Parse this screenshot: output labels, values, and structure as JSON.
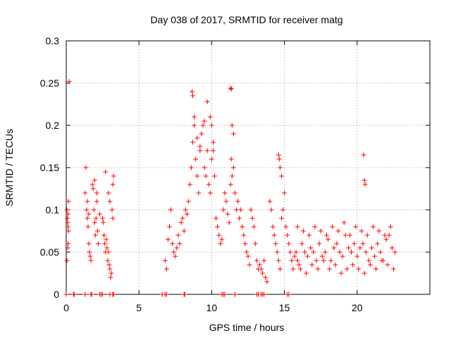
{
  "chart_data": {
    "type": "scatter",
    "title": "Day 038 of 2017, SRMTID for receiver matg",
    "xlabel": "GPS time / hours",
    "ylabel": "SRMTID / TECUs",
    "xlim": [
      0,
      25
    ],
    "ylim": [
      0,
      0.3
    ],
    "xticks": [
      0,
      5,
      10,
      15,
      20
    ],
    "xtick_labels": [
      "0",
      "5",
      "10",
      "15",
      "20"
    ],
    "yticks": [
      0,
      0.05,
      0.1,
      0.15,
      0.2,
      0.25,
      0.3
    ],
    "ytick_labels": [
      "0",
      "0.05",
      "0.1",
      "0.15",
      "0.2",
      "0.25",
      "0.3"
    ],
    "grid": true,
    "marker": "+",
    "color": "#ff0000",
    "series": [
      {
        "name": "SRMTID",
        "x": [
          0.05,
          0.08,
          0.1,
          0.12,
          0.15,
          0.05,
          0.1,
          0.13,
          0.08,
          0.12,
          0.15,
          0.2,
          0.5,
          1.3,
          1.35,
          1.4,
          1.45,
          1.5,
          1.55,
          1.6,
          1.65,
          1.7,
          1.45,
          1.55,
          1.8,
          1.85,
          1.9,
          1.95,
          2.0,
          2.05,
          2.1,
          2.15,
          2.2,
          1.95,
          2.1,
          2.3,
          2.5,
          2.55,
          2.6,
          2.65,
          2.7,
          2.75,
          2.8,
          2.85,
          2.9,
          2.95,
          3.0,
          3.05,
          3.1,
          3.15,
          3.2,
          3.25,
          2.7,
          2.9,
          3.0,
          3.2,
          6.8,
          6.9,
          7.0,
          7.1,
          7.2,
          7.3,
          7.4,
          7.5,
          7.6,
          7.7,
          7.8,
          7.9,
          8.0,
          8.1,
          8.2,
          8.3,
          8.4,
          8.5,
          8.6,
          8.7,
          8.8,
          8.9,
          9.0,
          9.1,
          9.2,
          9.3,
          9.4,
          9.5,
          9.6,
          9.7,
          9.8,
          9.9,
          10.0,
          10.1,
          10.2,
          8.65,
          8.7,
          8.8,
          9.0,
          9.2,
          9.5,
          9.7,
          9.9,
          10.0,
          10.1,
          10.3,
          10.4,
          10.5,
          10.6,
          10.7,
          10.8,
          10.9,
          11.0,
          11.1,
          11.2,
          11.3,
          11.35,
          11.4,
          11.5,
          11.6,
          11.7,
          11.8,
          11.3,
          11.35,
          11.4,
          11.5,
          11.9,
          12.0,
          12.1,
          12.2,
          12.3,
          12.4,
          12.5,
          12.6,
          12.7,
          12.8,
          12.9,
          13.0,
          13.1,
          13.2,
          13.3,
          13.4,
          13.5,
          13.6,
          13.7,
          13.8,
          14.0,
          14.1,
          14.2,
          14.3,
          14.4,
          14.5,
          14.6,
          14.7,
          14.8,
          14.9,
          15.0,
          15.1,
          14.6,
          14.65,
          14.7,
          14.8,
          15.2,
          15.3,
          15.4,
          15.5,
          15.6,
          15.7,
          15.8,
          15.9,
          16.0,
          16.2,
          16.4,
          16.6,
          16.8,
          17.0,
          17.2,
          17.4,
          17.6,
          17.8,
          18.0,
          18.2,
          18.4,
          18.6,
          18.8,
          19.0,
          19.2,
          19.4,
          19.6,
          19.8,
          20.0,
          20.2,
          20.4,
          20.6,
          20.8,
          21.0,
          21.2,
          21.4,
          21.6,
          21.8,
          22.0,
          22.2,
          22.4,
          22.6,
          16.1,
          16.5,
          16.9,
          17.3,
          17.7,
          18.1,
          18.5,
          18.9,
          19.3,
          19.7,
          20.1,
          20.5,
          20.9,
          21.3,
          21.7,
          22.1,
          22.5,
          15.9,
          16.3,
          16.7,
          17.1,
          17.5,
          17.9,
          18.3,
          18.7,
          19.1,
          19.5,
          19.9,
          20.3,
          20.7,
          21.1,
          21.5,
          21.9,
          22.3,
          20.45,
          20.5,
          20.55,
          0.0,
          0.55,
          1.3,
          1.7,
          1.75,
          2.3,
          2.4,
          2.5,
          3.0,
          3.2,
          3.25,
          6.6,
          6.8,
          6.9,
          8.1,
          8.15,
          10.7,
          10.8,
          10.9,
          11.6,
          13.1,
          13.2,
          13.4,
          13.5,
          13.6,
          15.2,
          15.3
        ],
        "y": [
          0.1,
          0.09,
          0.085,
          0.08,
          0.11,
          0.04,
          0.055,
          0.06,
          0.09,
          0.095,
          0.075,
          0.252,
          0.0,
          0.12,
          0.15,
          0.1,
          0.09,
          0.08,
          0.06,
          0.05,
          0.045,
          0.04,
          0.11,
          0.095,
          0.13,
          0.125,
          0.1,
          0.085,
          0.07,
          0.09,
          0.12,
          0.075,
          0.06,
          0.135,
          0.11,
          0.095,
          0.09,
          0.085,
          0.07,
          0.06,
          0.05,
          0.065,
          0.055,
          0.04,
          0.05,
          0.035,
          0.03,
          0.02,
          0.025,
          0.1,
          0.13,
          0.14,
          0.145,
          0.12,
          0.11,
          0.09,
          0.04,
          0.03,
          0.065,
          0.08,
          0.1,
          0.06,
          0.05,
          0.045,
          0.055,
          0.07,
          0.06,
          0.085,
          0.09,
          0.075,
          0.1,
          0.095,
          0.11,
          0.13,
          0.15,
          0.18,
          0.2,
          0.16,
          0.14,
          0.12,
          0.17,
          0.19,
          0.2,
          0.15,
          0.14,
          0.17,
          0.13,
          0.12,
          0.16,
          0.18,
          0.14,
          0.24,
          0.235,
          0.21,
          0.185,
          0.175,
          0.205,
          0.228,
          0.21,
          0.2,
          0.17,
          0.09,
          0.08,
          0.07,
          0.06,
          0.065,
          0.1,
          0.12,
          0.11,
          0.095,
          0.085,
          0.13,
          0.16,
          0.14,
          0.15,
          0.12,
          0.1,
          0.11,
          0.244,
          0.243,
          0.2,
          0.19,
          0.09,
          0.1,
          0.08,
          0.07,
          0.06,
          0.05,
          0.045,
          0.035,
          0.1,
          0.09,
          0.08,
          0.06,
          0.04,
          0.03,
          0.035,
          0.03,
          0.025,
          0.04,
          0.02,
          0.015,
          0.11,
          0.1,
          0.08,
          0.07,
          0.06,
          0.05,
          0.04,
          0.03,
          0.09,
          0.1,
          0.12,
          0.08,
          0.165,
          0.16,
          0.15,
          0.14,
          0.07,
          0.06,
          0.05,
          0.04,
          0.03,
          0.045,
          0.05,
          0.04,
          0.035,
          0.06,
          0.05,
          0.045,
          0.055,
          0.05,
          0.04,
          0.06,
          0.045,
          0.05,
          0.065,
          0.04,
          0.055,
          0.06,
          0.05,
          0.045,
          0.07,
          0.055,
          0.05,
          0.06,
          0.045,
          0.055,
          0.06,
          0.05,
          0.04,
          0.055,
          0.045,
          0.06,
          0.05,
          0.04,
          0.065,
          0.07,
          0.055,
          0.05,
          0.03,
          0.025,
          0.035,
          0.03,
          0.04,
          0.03,
          0.035,
          0.025,
          0.03,
          0.035,
          0.03,
          0.025,
          0.035,
          0.03,
          0.04,
          0.035,
          0.03,
          0.08,
          0.075,
          0.07,
          0.08,
          0.075,
          0.07,
          0.08,
          0.075,
          0.085,
          0.07,
          0.08,
          0.075,
          0.07,
          0.08,
          0.075,
          0.07,
          0.08,
          0.165,
          0.135,
          0.13,
          0.0,
          0.0,
          0.0,
          0.0,
          0.0,
          0.0,
          0.0,
          0.0,
          0.0,
          0.0,
          0.0,
          0.0,
          0.0,
          0.0,
          0.0,
          0.0,
          0.0,
          0.0,
          0.0,
          0.0,
          0.0,
          0.0,
          0.0,
          0.0,
          0.0,
          0.0,
          0.0
        ]
      }
    ]
  }
}
